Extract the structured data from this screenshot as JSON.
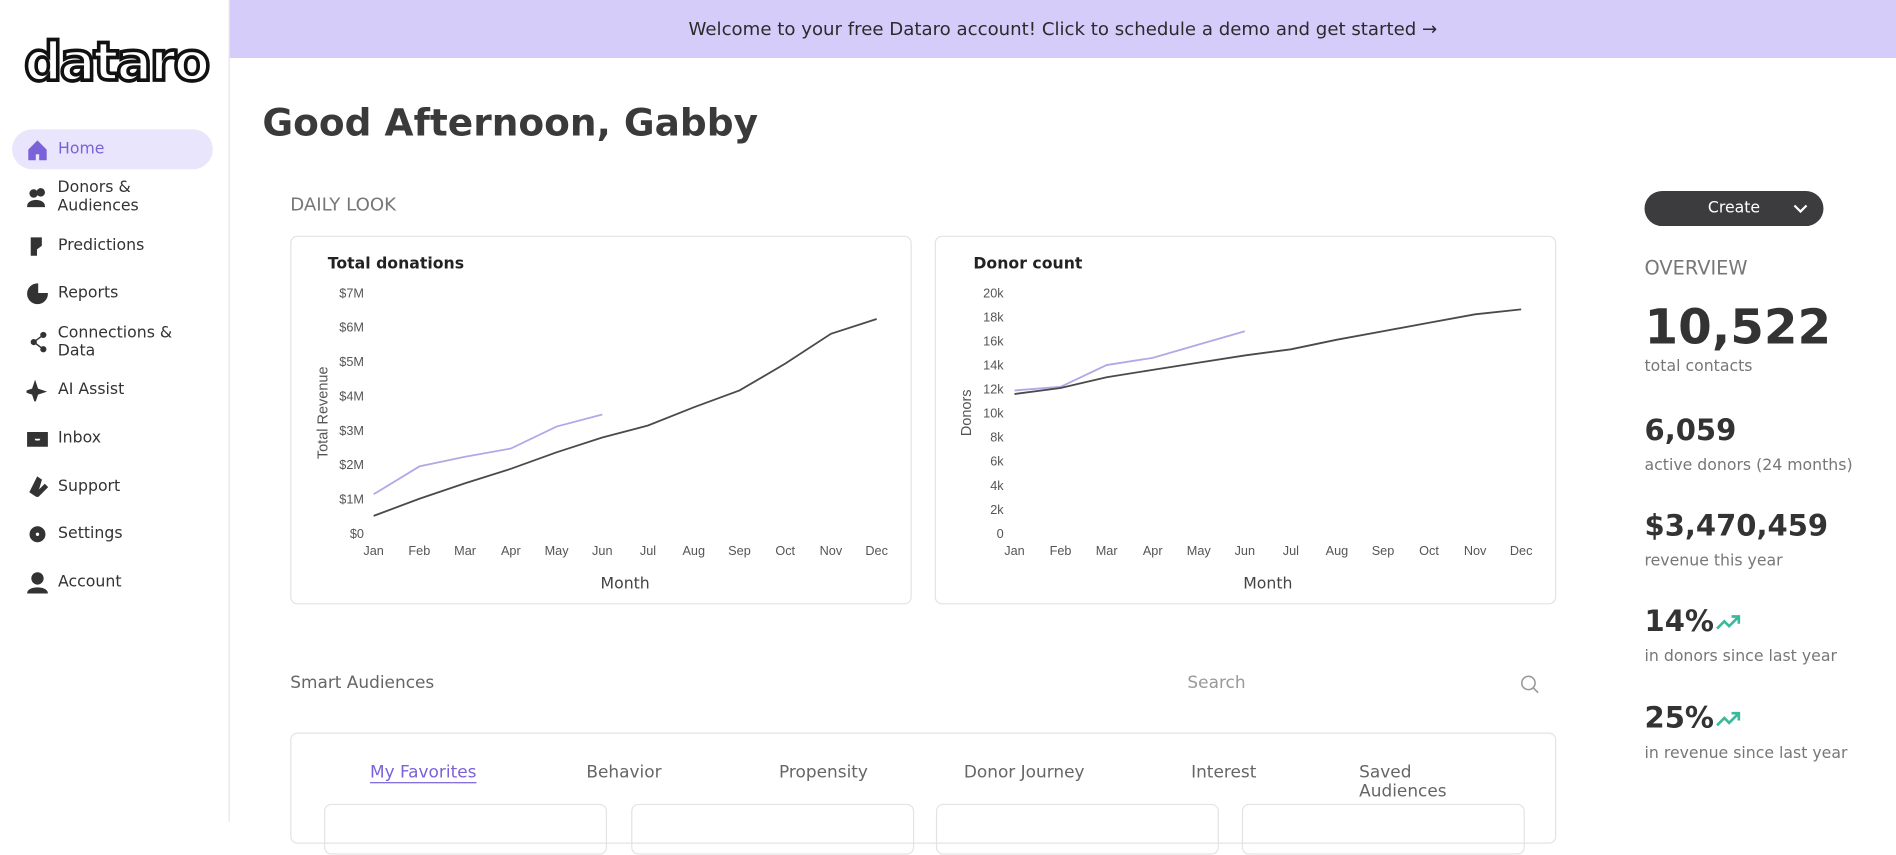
{
  "banner": "Welcome to your free Dataro account! Click to schedule a demo and get started →",
  "logo": "dataro",
  "nav": [
    "Home",
    "Donors & Audiences",
    "Predictions",
    "Reports",
    "Connections & Data",
    "AI Assist",
    "Inbox",
    "Support",
    "Settings",
    "Account"
  ],
  "greeting": "Good Afternoon, Gabby",
  "section": "DAILY LOOK",
  "chart_data": [
    {
      "type": "line",
      "title": "Total donations",
      "xlabel": "Month",
      "ylabel": "Total Revenue",
      "categories": [
        "Jan",
        "Feb",
        "Mar",
        "Apr",
        "May",
        "Jun",
        "Jul",
        "Aug",
        "Sep",
        "Oct",
        "Nov",
        "Dec"
      ],
      "series": [
        {
          "color": "#b3a8e6",
          "values": [
            1130000,
            1940000,
            2220000,
            2460000,
            3100000,
            3450000,
            null,
            null,
            null,
            null,
            null,
            null
          ]
        },
        {
          "color": "#4a4a4a",
          "values": [
            500000,
            1000000,
            1450000,
            1870000,
            2350000,
            2780000,
            3130000,
            3660000,
            4150000,
            4930000,
            5800000,
            6230000
          ]
        }
      ],
      "ylim": [
        0,
        7000000
      ],
      "yticks": [
        {
          "value": 0,
          "label": "$0"
        },
        {
          "value": 1000000,
          "label": "$1M"
        },
        {
          "value": 2000000,
          "label": "$2M"
        },
        {
          "value": 3000000,
          "label": "$3M"
        },
        {
          "value": 4000000,
          "label": "$4M"
        },
        {
          "value": 5000000,
          "label": "$5M"
        },
        {
          "value": 6000000,
          "label": "$6M"
        },
        {
          "value": 7000000,
          "label": "$7M"
        }
      ]
    },
    {
      "type": "line",
      "title": "Donor count",
      "xlabel": "Month",
      "ylabel": "Donors",
      "categories": [
        "Jan",
        "Feb",
        "Mar",
        "Apr",
        "May",
        "Jun",
        "Jul",
        "Aug",
        "Sep",
        "Oct",
        "Nov",
        "Dec"
      ],
      "series": [
        {
          "color": "#b3a8e6",
          "values": [
            11860,
            12160,
            13970,
            14570,
            15680,
            16780,
            null,
            null,
            null,
            null,
            null,
            null
          ]
        },
        {
          "color": "#4a4a4a",
          "values": [
            11560,
            12060,
            12960,
            13570,
            14170,
            14770,
            15280,
            16080,
            16780,
            17490,
            18190,
            18600
          ]
        }
      ],
      "ylim": [
        0,
        20000
      ],
      "yticks": [
        0,
        {
          "value": 2000,
          "label": "2k"
        },
        {
          "value": 4000,
          "label": "4k"
        },
        {
          "value": 6000,
          "label": "6k"
        },
        {
          "value": 8000,
          "label": "8k"
        },
        {
          "value": 10000,
          "label": "10k"
        },
        {
          "value": 12000,
          "label": "12k"
        },
        {
          "value": 14000,
          "label": "14k"
        },
        {
          "value": 16000,
          "label": "16k"
        },
        {
          "value": 18000,
          "label": "18k"
        },
        {
          "value": 20000,
          "label": "20k"
        }
      ]
    }
  ],
  "create": "Create",
  "overview": {
    "title": "OVERVIEW",
    "stats": [
      {
        "value": "10,522",
        "label": "total contacts"
      },
      {
        "value": "6,059",
        "label": "active donors (24 months)"
      },
      {
        "value": "$3,470,459",
        "label": "revenue this year"
      },
      {
        "value": "14%",
        "label": "in donors since last year"
      },
      {
        "value": "25%",
        "label": "in revenue since last year"
      }
    ]
  },
  "audiences": {
    "title": "Smart Audiences",
    "search": "Search",
    "tabs": [
      "My Favorites",
      "Behavior",
      "Propensity",
      "Donor Journey",
      "Interest",
      "Saved Audiences"
    ]
  }
}
